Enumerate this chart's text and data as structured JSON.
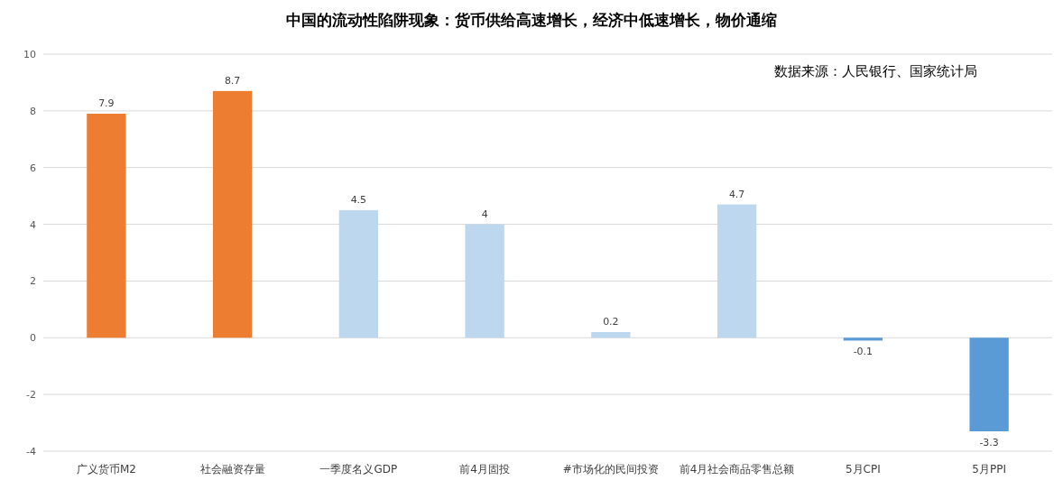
{
  "chart_data": {
    "type": "bar",
    "title": "中国的流动性陷阱现象：货币供给高速增长，经济中低速增长，物价通缩",
    "categories": [
      "广义货币M2",
      "社会融资存量",
      "一季度名义GDP",
      "前4月固投",
      "#市场化的民间投资",
      "前4月社会商品零售总额",
      "5月CPI",
      "5月PPI"
    ],
    "values": [
      7.9,
      8.7,
      4.5,
      4,
      0.2,
      4.7,
      -0.1,
      -3.3
    ],
    "colors": [
      "#ed7d31",
      "#ed7d31",
      "#bdd7ee",
      "#bdd7ee",
      "#bdd7ee",
      "#bdd7ee",
      "#5b9bd5",
      "#5b9bd5"
    ],
    "data_labels": true,
    "ylim": [
      -4,
      10
    ],
    "yticks": [
      -4,
      -2,
      0,
      2,
      4,
      6,
      8,
      10
    ],
    "grid": "y",
    "annotations": [
      "数据来源：人民银行、国家统计局"
    ]
  }
}
